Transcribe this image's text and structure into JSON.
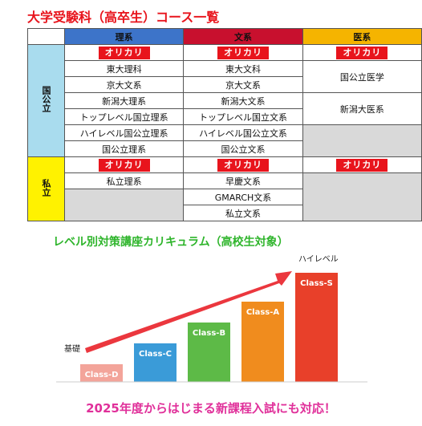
{
  "title": "大学受験科（高卒生）コース一覧",
  "columns": [
    "理系",
    "文系",
    "医系"
  ],
  "sections": {
    "koku": "国公立",
    "shi": "私立"
  },
  "badge": "オリカリ",
  "rika_koku": [
    "東大理科",
    "京大文系",
    "新潟大理系",
    "トップレベル国立理系",
    "ハイレベル国公立理系",
    "国公立理系"
  ],
  "bunka_koku": [
    "東大文科",
    "京大文系",
    "新潟大文系",
    "トップレベル国立文系",
    "ハイレベル国公立文系",
    "国公立文系"
  ],
  "ika_koku": [
    "国公立医学",
    "新潟大医系"
  ],
  "rika_shi": [
    "私立理系"
  ],
  "bunka_shi": [
    "早慶文系",
    "GMARCH文系",
    "私立文系"
  ],
  "subtitle": "レベル別対策講座カリキュラム（高校生対象）",
  "chart_data": {
    "type": "bar",
    "categories": [
      "Class-D",
      "Class-C",
      "Class-B",
      "Class-A",
      "Class-S"
    ],
    "values": [
      1,
      2,
      3,
      4,
      5
    ],
    "colors": [
      "#f3a49a",
      "#3a9bd8",
      "#5dba47",
      "#f08c1e",
      "#e8402a"
    ],
    "annotations": {
      "low": "基礎",
      "high": "ハイレベル"
    },
    "arrow_color": "#e8141c"
  },
  "footer": "2025年度からはじまる新課程入試にも対応！"
}
